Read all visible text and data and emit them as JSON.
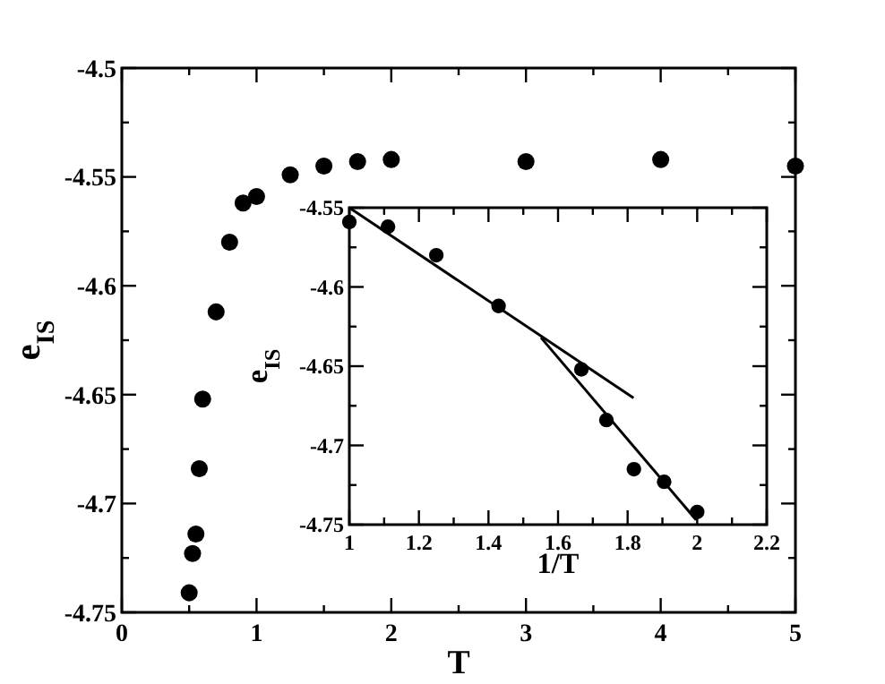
{
  "chart_data": [
    {
      "type": "scatter",
      "xlabel": "T",
      "ylabel": "e$_{IS}$",
      "grid": false,
      "xlim": [
        0,
        5
      ],
      "ylim": [
        -4.75,
        -4.5
      ],
      "xticks": [
        0,
        {
          "value": 0.5,
          "label": null
        },
        1,
        {
          "value": 1.5,
          "label": null
        },
        2,
        {
          "value": 2.5,
          "label": null
        },
        3,
        {
          "value": 3.5,
          "label": null
        },
        4,
        {
          "value": 4.5,
          "label": null
        },
        5
      ],
      "yticks": [
        -4.75,
        {
          "value": -4.725,
          "label": null
        },
        -4.7,
        {
          "value": -4.675,
          "label": null
        },
        -4.65,
        {
          "value": -4.625,
          "label": null
        },
        -4.6,
        {
          "value": -4.575,
          "label": null
        },
        -4.55,
        {
          "value": -4.525,
          "label": null
        },
        -4.5
      ],
      "series": [
        {
          "marker": "circle",
          "color": "#000000",
          "x": [
            0.5,
            0.525,
            0.55,
            0.575,
            0.6,
            0.7,
            0.8,
            0.9,
            1,
            1.25,
            1.5,
            1.75,
            2,
            3,
            4,
            5
          ],
          "values": [
            -4.741,
            -4.723,
            -4.714,
            -4.684,
            -4.652,
            -4.612,
            -4.58,
            -4.562,
            -4.559,
            -4.549,
            -4.545,
            -4.543,
            -4.542,
            -4.543,
            -4.542,
            -4.545
          ]
        }
      ]
    },
    {
      "type": "scatter",
      "xlabel": "1/T",
      "ylabel": "e$_{IS}$",
      "grid": false,
      "xlim": [
        1,
        2.2
      ],
      "ylim": [
        -4.75,
        -4.55
      ],
      "xticks": [
        1,
        {
          "value": 1.1,
          "label": null
        },
        1.2,
        {
          "value": 1.3,
          "label": null
        },
        1.4,
        {
          "value": 1.5,
          "label": null
        },
        1.6,
        {
          "value": 1.7,
          "label": null
        },
        1.8,
        {
          "value": 1.9,
          "label": null
        },
        2,
        {
          "value": 2.1,
          "label": null
        },
        2.2
      ],
      "yticks": [
        -4.75,
        {
          "value": -4.725,
          "label": null
        },
        -4.7,
        {
          "value": -4.675,
          "label": null
        },
        -4.65,
        {
          "value": -4.625,
          "label": null
        },
        -4.6,
        {
          "value": -4.575,
          "label": null
        },
        -4.55
      ],
      "series": [
        {
          "marker": "circle",
          "color": "#000000",
          "x": [
            1,
            1.111,
            1.25,
            1.429,
            1.667,
            1.739,
            1.818,
            1.905,
            2
          ],
          "values": [
            -4.559,
            -4.562,
            -4.58,
            -4.612,
            -4.652,
            -4.684,
            -4.715,
            -4.723,
            -4.742
          ]
        },
        {
          "type": "line",
          "color": "#000000",
          "line_style": "solid",
          "x": [
            1,
            1.817
          ],
          "values": [
            -4.55,
            -4.67
          ]
        },
        {
          "type": "line",
          "color": "#000000",
          "line_style": "solid",
          "x": [
            1.551,
            1.997
          ],
          "values": [
            -4.632,
            -4.747
          ]
        }
      ]
    }
  ]
}
